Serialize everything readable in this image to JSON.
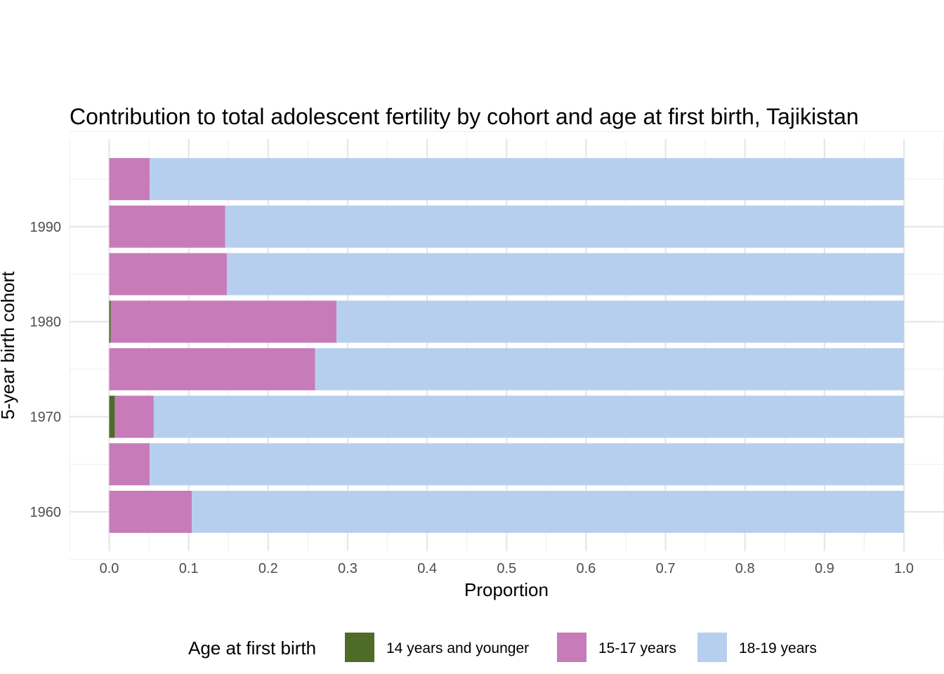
{
  "chart_data": {
    "type": "bar",
    "orientation": "horizontal",
    "stacked": true,
    "title": "Contribution to total adolescent fertility by cohort and age at first birth,  Tajikistan",
    "xlabel": "Proportion",
    "ylabel": "5-year birth cohort",
    "xlim": [
      0,
      1
    ],
    "x_ticks": [
      "0.0",
      "0.1",
      "0.2",
      "0.3",
      "0.4",
      "0.5",
      "0.6",
      "0.7",
      "0.8",
      "0.9",
      "1.0"
    ],
    "y_ticks": [
      "1960",
      "1970",
      "1980",
      "1990"
    ],
    "categories": [
      1960,
      1965,
      1970,
      1975,
      1980,
      1985,
      1990,
      1995
    ],
    "series": [
      {
        "name": "14 years and younger",
        "color": "#4f6b28",
        "values": [
          0.0,
          0.0,
          0.007,
          0.0,
          0.002,
          0.0,
          0.0,
          0.0
        ]
      },
      {
        "name": "15-17 years",
        "color": "#c87bb9",
        "values": [
          0.104,
          0.051,
          0.049,
          0.259,
          0.284,
          0.148,
          0.146,
          0.051
        ]
      },
      {
        "name": "18-19 years",
        "color": "#b7cfef",
        "values": [
          0.896,
          0.949,
          0.944,
          0.741,
          0.714,
          0.852,
          0.854,
          0.949
        ]
      }
    ],
    "grid": true,
    "legend_position": "bottom",
    "legend_title": "Age at first birth"
  }
}
